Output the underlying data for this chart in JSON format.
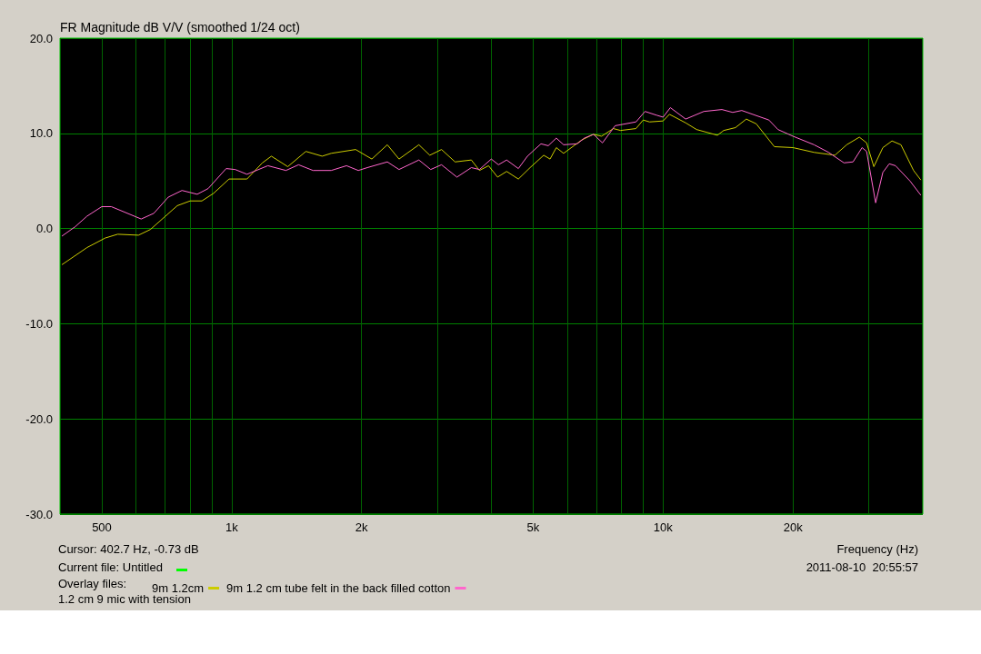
{
  "chart_data": {
    "type": "line",
    "title": "FR Magnitude dB V/V (smoothed 1/24 oct)",
    "xlabel": "Frequency (Hz)",
    "legend_title": "Overlay files:",
    "legend": "bottom left",
    "grid": true,
    "marker": "none",
    "log": "x",
    "xlim": [
      400,
      40000
    ],
    "xticks": [
      {
        "value": 500,
        "label": "500"
      },
      {
        "value": 600,
        "label": null
      },
      {
        "value": 700,
        "label": null
      },
      {
        "value": 800,
        "label": null
      },
      {
        "value": 900,
        "label": null
      },
      {
        "value": 1000,
        "label": "1k"
      },
      {
        "value": 2000,
        "label": "2k"
      },
      {
        "value": 3000,
        "label": null
      },
      {
        "value": 4000,
        "label": null
      },
      {
        "value": 5000,
        "label": "5k"
      },
      {
        "value": 6000,
        "label": null
      },
      {
        "value": 7000,
        "label": null
      },
      {
        "value": 8000,
        "label": null
      },
      {
        "value": 9000,
        "label": null
      },
      {
        "value": 10000,
        "label": "10k"
      },
      {
        "value": 20000,
        "label": "20k"
      },
      {
        "value": 30000,
        "label": null
      }
    ],
    "ylim": [
      -30,
      20
    ],
    "yticks": [
      {
        "value": -30,
        "label": "-30.0"
      },
      {
        "value": -20,
        "label": "-20.0"
      },
      {
        "value": -10,
        "label": "-10.0"
      },
      {
        "value": 0,
        "label": "0.0"
      },
      {
        "value": 10,
        "label": "10.0"
      },
      {
        "value": 20,
        "label": "20.0"
      }
    ],
    "annotations": [
      "Cursor: 402.7 Hz, -0.73 dB",
      "Current file: Untitled",
      "1.2 cm 9 mic with tension",
      "2011-08-10  20:55:57"
    ],
    "series": [
      {
        "name": "9m 1.2cm",
        "color": "#cccc00",
        "x": [
          404,
          462,
          509,
          544,
          608,
          648,
          748,
          801,
          853,
          908,
          986,
          1085,
          1178,
          1236,
          1349,
          1486,
          1621,
          1701,
          1938,
          2113,
          2295,
          2443,
          2716,
          2879,
          3065,
          3295,
          3594,
          3753,
          3939,
          4134,
          4339,
          4619,
          4918,
          5288,
          5470,
          5656,
          5880,
          6477,
          6897,
          7201,
          7668,
          7969,
          8653,
          8993,
          9303,
          10000,
          10344,
          11283,
          11958,
          13363,
          13822,
          14715,
          15592,
          16443,
          18112,
          20000,
          22393,
          25019,
          26645,
          28508,
          29634,
          30800,
          32319,
          33930,
          35590,
          38076,
          39580
        ],
        "values": [
          -3.8,
          -2.0,
          -1.0,
          -0.6,
          -0.7,
          -0.1,
          2.4,
          2.9,
          2.9,
          3.7,
          5.2,
          5.2,
          6.9,
          7.6,
          6.5,
          8.1,
          7.6,
          7.9,
          8.3,
          7.3,
          8.8,
          7.3,
          8.8,
          7.7,
          8.3,
          7.0,
          7.2,
          6.1,
          6.6,
          5.4,
          6.0,
          5.2,
          6.4,
          7.7,
          7.3,
          8.5,
          7.9,
          9.3,
          9.9,
          9.7,
          10.5,
          10.3,
          10.5,
          11.4,
          11.2,
          11.3,
          12.0,
          11.1,
          10.4,
          9.8,
          10.3,
          10.6,
          11.5,
          11.0,
          8.6,
          8.5,
          8.0,
          7.7,
          8.8,
          9.6,
          9.0,
          6.5,
          8.5,
          9.2,
          8.8,
          6.1,
          5.1
        ]
      },
      {
        "name": "9m 1.2 cm tube felt in the back filled cotton",
        "color": "#ff66cc",
        "x": [
          404,
          434,
          462,
          500,
          526,
          617,
          660,
          713,
          767,
          832,
          882,
          971,
          1019,
          1085,
          1213,
          1336,
          1429,
          1544,
          1701,
          1846,
          1966,
          2063,
          2295,
          2443,
          2716,
          2893,
          3065,
          3327,
          3594,
          3753,
          3997,
          4153,
          4339,
          4619,
          4848,
          5212,
          5418,
          5656,
          5880,
          6322,
          6571,
          6897,
          7236,
          7742,
          8653,
          9081,
          9668,
          10000,
          10394,
          11283,
          12428,
          13690,
          14503,
          15220,
          17594,
          18463,
          20000,
          22393,
          24190,
          26261,
          27560,
          28925,
          29634,
          31100,
          32319,
          33443,
          34580,
          37350,
          39580
        ],
        "values": [
          -0.8,
          0.2,
          1.3,
          2.3,
          2.3,
          1.0,
          1.6,
          3.3,
          4.0,
          3.6,
          4.2,
          6.3,
          6.2,
          5.7,
          6.6,
          6.1,
          6.7,
          6.1,
          6.1,
          6.6,
          6.1,
          6.4,
          7.0,
          6.2,
          7.2,
          6.2,
          6.7,
          5.4,
          6.4,
          6.2,
          7.3,
          6.7,
          7.2,
          6.3,
          7.6,
          8.9,
          8.7,
          9.5,
          8.8,
          8.9,
          9.5,
          9.9,
          9.0,
          10.8,
          11.2,
          12.3,
          11.9,
          11.7,
          12.7,
          11.5,
          12.3,
          12.5,
          12.2,
          12.4,
          11.4,
          10.4,
          9.7,
          8.8,
          8.0,
          6.9,
          7.0,
          8.5,
          8.1,
          2.7,
          5.9,
          6.8,
          6.6,
          5.0,
          3.5
        ]
      }
    ]
  }
}
